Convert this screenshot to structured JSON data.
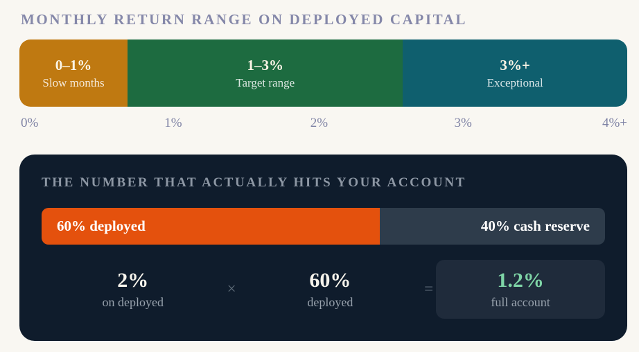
{
  "page": {
    "title": "MONTHLY RETURN RANGE ON DEPLOYED CAPITAL"
  },
  "range_chart": {
    "segments": [
      {
        "value": "0–1%",
        "label": "Slow months",
        "color": "#bf7911"
      },
      {
        "value": "1–3%",
        "label": "Target range",
        "color": "#1d6b40"
      },
      {
        "value": "3%+",
        "label": "Exceptional",
        "color": "#0f5f6e"
      }
    ],
    "axis_ticks": [
      "0%",
      "1%",
      "2%",
      "3%",
      "4%+"
    ]
  },
  "card": {
    "title": "THE NUMBER THAT ACTUALLY HITS YOUR ACCOUNT",
    "allocation": {
      "deployed": {
        "label": "60% deployed",
        "pct": 60,
        "color": "#e4510d"
      },
      "reserve": {
        "label": "40% cash reserve",
        "pct": 40,
        "color": "#2e3c4b"
      }
    },
    "formula": {
      "term1": {
        "value": "2%",
        "label": "on deployed"
      },
      "multiply": "×",
      "term2": {
        "value": "60%",
        "label": "deployed"
      },
      "equals": "=",
      "result": {
        "value": "1.2%",
        "label": "full account",
        "color": "#7ed4a6"
      }
    }
  },
  "chart_data": [
    {
      "type": "bar",
      "title": "Monthly return range on deployed capital",
      "orientation": "horizontal-stacked-range",
      "xlim": [
        0,
        4.5
      ],
      "x_ticks": [
        "0%",
        "1%",
        "2%",
        "3%",
        "4%+"
      ],
      "segments": [
        {
          "label": "0–1%",
          "sublabel": "Slow months",
          "range_pct": [
            0,
            1
          ],
          "color": "#bf7911"
        },
        {
          "label": "1–3%",
          "sublabel": "Target range",
          "range_pct": [
            1,
            3
          ],
          "color": "#1d6b40"
        },
        {
          "label": "3%+",
          "sublabel": "Exceptional",
          "range_pct": [
            3,
            4.5
          ],
          "color": "#0f5f6e"
        }
      ]
    },
    {
      "type": "bar",
      "title": "Capital allocation",
      "categories": [
        "deployed",
        "cash reserve"
      ],
      "values": [
        60,
        40
      ],
      "unit": "%",
      "colors": [
        "#e4510d",
        "#2e3c4b"
      ]
    },
    {
      "type": "table",
      "title": "The number that actually hits your account",
      "equation": "2% on deployed × 60% deployed = 1.2% full account",
      "operands": [
        2,
        60
      ],
      "result": 1.2,
      "unit": "%"
    }
  ]
}
